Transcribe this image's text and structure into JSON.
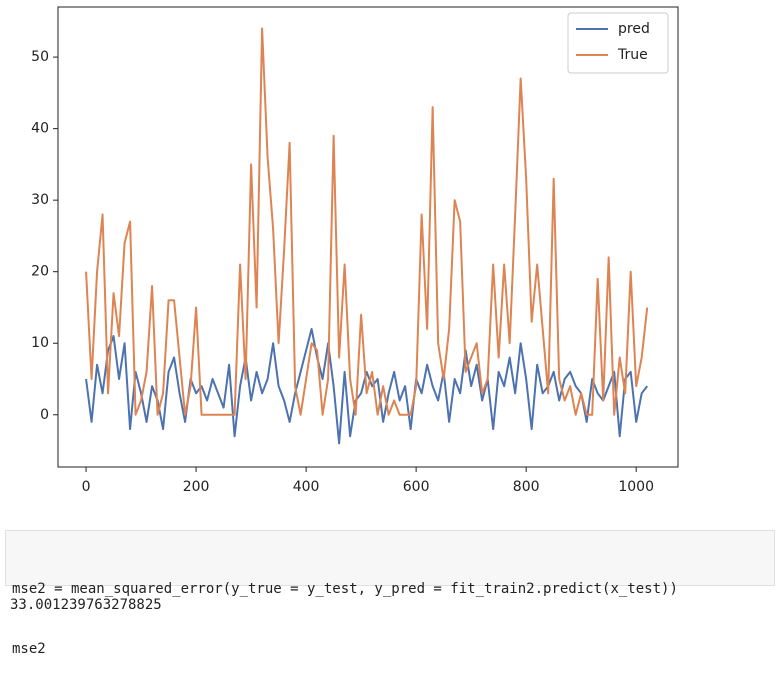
{
  "chart_data": {
    "type": "line",
    "x": [
      0,
      10,
      20,
      30,
      40,
      50,
      60,
      70,
      80,
      90,
      100,
      110,
      120,
      130,
      140,
      150,
      160,
      170,
      180,
      190,
      200,
      210,
      220,
      230,
      240,
      250,
      260,
      270,
      280,
      290,
      300,
      310,
      320,
      330,
      340,
      350,
      360,
      370,
      380,
      390,
      400,
      410,
      420,
      430,
      440,
      450,
      460,
      470,
      480,
      490,
      500,
      510,
      520,
      530,
      540,
      550,
      560,
      570,
      580,
      590,
      600,
      610,
      620,
      630,
      640,
      650,
      660,
      670,
      680,
      690,
      700,
      710,
      720,
      730,
      740,
      750,
      760,
      770,
      780,
      790,
      800,
      810,
      820,
      830,
      840,
      850,
      860,
      870,
      880,
      890,
      900,
      910,
      920,
      930,
      940,
      950,
      960,
      970,
      980,
      990,
      1000,
      1010,
      1020
    ],
    "series": [
      {
        "name": "pred",
        "color": "#4c72b0",
        "values": [
          5,
          -1,
          7,
          3,
          9,
          11,
          5,
          10,
          -2,
          6,
          3,
          -1,
          4,
          2,
          -2,
          6,
          8,
          3,
          -1,
          5,
          3,
          4,
          2,
          5,
          3,
          1,
          7,
          -3,
          4,
          8,
          2,
          6,
          3,
          5,
          10,
          4,
          2,
          -1,
          3,
          6,
          9,
          12,
          8,
          5,
          10,
          4,
          -4,
          6,
          -3,
          2,
          3,
          6,
          4,
          5,
          -1,
          3,
          6,
          2,
          4,
          -2,
          5,
          3,
          7,
          4,
          2,
          6,
          -1,
          5,
          3,
          9,
          4,
          7,
          2,
          5,
          -2,
          6,
          4,
          8,
          3,
          10,
          5,
          -2,
          7,
          3,
          4,
          6,
          2,
          5,
          6,
          4,
          3,
          -1,
          5,
          3,
          2,
          4,
          6,
          -3,
          5,
          6,
          -1,
          3,
          4
        ]
      },
      {
        "name": "True",
        "color": "#dd8452",
        "values": [
          20,
          5,
          20,
          28,
          3,
          17,
          11,
          24,
          27,
          0,
          2,
          6,
          18,
          0,
          3,
          16,
          16,
          8,
          0,
          4,
          15,
          0,
          0,
          0,
          0,
          0,
          0,
          0,
          21,
          5,
          35,
          15,
          54,
          36,
          26,
          10,
          23,
          38,
          4,
          0,
          5,
          10,
          9,
          0,
          5,
          39,
          8,
          21,
          5,
          0,
          14,
          3,
          6,
          0,
          4,
          0,
          2,
          0,
          0,
          0,
          4,
          28,
          12,
          43,
          10,
          5,
          12,
          30,
          27,
          6,
          8,
          10,
          3,
          5,
          21,
          8,
          21,
          10,
          28,
          47,
          33,
          13,
          21,
          12,
          3,
          33,
          5,
          2,
          4,
          0,
          3,
          0,
          0,
          19,
          2,
          22,
          0,
          8,
          3,
          20,
          4,
          8,
          15
        ]
      }
    ],
    "xlim": [
      -51,
      1076
    ],
    "ylim": [
      -7.3,
      57
    ],
    "xticks": [
      0,
      200,
      400,
      600,
      800,
      1000
    ],
    "yticks": [
      0,
      10,
      20,
      30,
      40,
      50
    ],
    "legend": "upper right"
  },
  "code": {
    "lines": [
      "mse2 = mean_squared_error(y_true = y_test, y_pred = fit_train2.predict(x_test))",
      "mse2"
    ]
  },
  "output": "33.001239763278825"
}
